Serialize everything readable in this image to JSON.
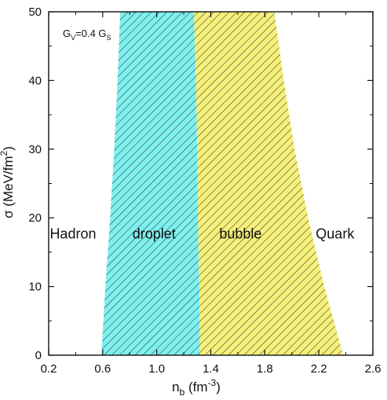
{
  "chart_data": {
    "type": "area",
    "annotation": {
      "main": "G",
      "sub1": "V",
      "mid": "=0.4 G",
      "sub2": "S"
    },
    "xlabel": {
      "main": "n",
      "sub": "b",
      "unit_open": " (fm",
      "unit_sup": "-3",
      "unit_close": ")"
    },
    "ylabel": {
      "main": "σ (MeV/fm",
      "sup": "2",
      "close": ")"
    },
    "xlim": [
      0.2,
      2.6
    ],
    "ylim": [
      0,
      50
    ],
    "xticks": [
      "0.2",
      "0.6",
      "1.0",
      "1.4",
      "1.8",
      "2.2",
      "2.6"
    ],
    "yticks": [
      "0",
      "10",
      "20",
      "30",
      "40",
      "50"
    ],
    "grid": false,
    "regions": [
      {
        "name": "droplet",
        "color": "#7ef0ee",
        "left_boundary": [
          [
            0.59,
            0
          ],
          [
            0.62,
            10
          ],
          [
            0.655,
            20
          ],
          [
            0.685,
            30
          ],
          [
            0.71,
            40
          ],
          [
            0.73,
            50
          ]
        ],
        "right_boundary": [
          [
            1.32,
            0
          ],
          [
            1.315,
            10
          ],
          [
            1.305,
            20
          ],
          [
            1.3,
            30
          ],
          [
            1.29,
            40
          ],
          [
            1.275,
            50
          ]
        ]
      },
      {
        "name": "bubble",
        "color": "#f5f07a",
        "left_boundary": [
          [
            1.32,
            0
          ],
          [
            1.315,
            10
          ],
          [
            1.305,
            20
          ],
          [
            1.3,
            30
          ],
          [
            1.29,
            40
          ],
          [
            1.275,
            50
          ]
        ],
        "right_boundary": [
          [
            2.38,
            0
          ],
          [
            2.24,
            10
          ],
          [
            2.12,
            20
          ],
          [
            2.02,
            30
          ],
          [
            1.94,
            40
          ],
          [
            1.87,
            50
          ]
        ]
      }
    ],
    "region_labels": [
      {
        "text": "Hadron",
        "x": 0.38,
        "y": 17
      },
      {
        "text": "droplet",
        "x": 0.98,
        "y": 17
      },
      {
        "text": "bubble",
        "x": 1.62,
        "y": 17
      },
      {
        "text": "Quark",
        "x": 2.32,
        "y": 17
      }
    ]
  }
}
